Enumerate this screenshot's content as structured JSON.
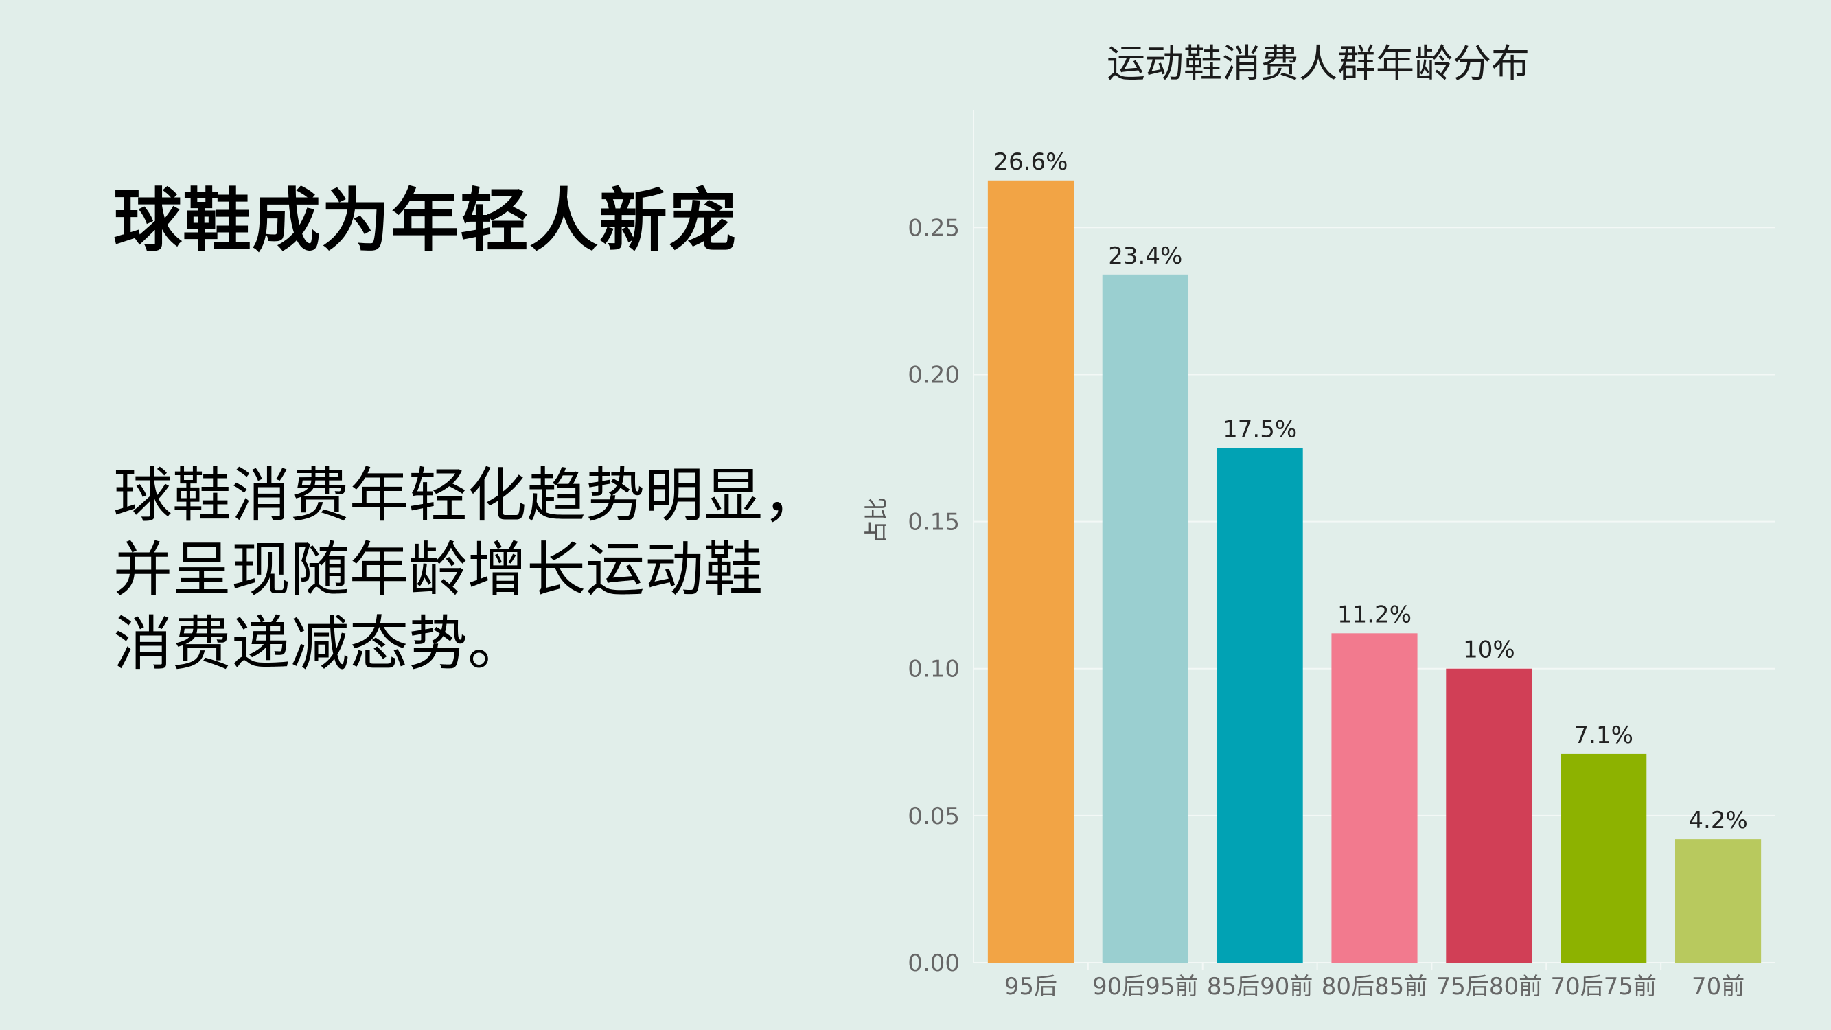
{
  "slide": {
    "headline": "球鞋成为年轻人新宠",
    "body_lines": [
      "球鞋消费年轻化趋势明显，",
      "并呈现随年龄增长运动鞋",
      "消费递减态势。"
    ]
  },
  "chart_data": {
    "type": "bar",
    "title": "运动鞋消费人群年龄分布",
    "xlabel": "",
    "ylabel": "占比",
    "ylim": [
      0,
      0.29
    ],
    "yticks": [
      "0.00",
      "0.05",
      "0.10",
      "0.15",
      "0.20",
      "0.25"
    ],
    "grid": true,
    "legend": "none",
    "categories": [
      "95后",
      "90后95前",
      "85后90前",
      "80后85前",
      "75后80前",
      "70后75前",
      "70前"
    ],
    "values": [
      0.266,
      0.234,
      0.175,
      0.112,
      0.1,
      0.071,
      0.042
    ],
    "data_labels": [
      "26.6%",
      "23.4%",
      "17.5%",
      "11.2%",
      "10%",
      "7.1%",
      "4.2%"
    ],
    "colors": [
      "#f2a445",
      "#9acfd0",
      "#01a2b4",
      "#f27a8e",
      "#d13f56",
      "#8db200",
      "#b8c95e"
    ]
  }
}
